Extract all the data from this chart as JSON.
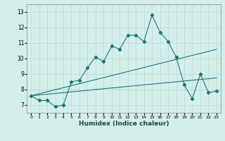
{
  "xlabel": "Humidex (Indice chaleur)",
  "x": [
    0,
    1,
    2,
    3,
    4,
    5,
    6,
    7,
    8,
    9,
    10,
    11,
    12,
    13,
    14,
    15,
    16,
    17,
    18,
    19,
    20,
    21,
    22,
    23
  ],
  "line_jagged": [
    7.6,
    7.3,
    7.3,
    6.9,
    7.0,
    8.5,
    8.6,
    9.4,
    10.1,
    9.8,
    10.8,
    10.6,
    11.5,
    11.5,
    11.1,
    12.8,
    11.7,
    11.1,
    10.1,
    8.3,
    7.4,
    9.0,
    7.8,
    7.9
  ],
  "line_straight1": [
    7.6,
    7.65,
    7.7,
    7.75,
    7.8,
    7.85,
    7.9,
    7.95,
    8.0,
    8.05,
    8.1,
    8.15,
    8.2,
    8.25,
    8.3,
    8.35,
    8.4,
    8.45,
    8.5,
    8.55,
    8.6,
    8.65,
    8.7,
    8.75
  ],
  "line_straight2": [
    7.6,
    7.73,
    7.86,
    7.99,
    8.12,
    8.25,
    8.38,
    8.51,
    8.64,
    8.77,
    8.9,
    9.03,
    9.16,
    9.29,
    9.42,
    9.55,
    9.68,
    9.81,
    9.94,
    10.07,
    10.2,
    10.33,
    10.46,
    10.59
  ],
  "ylim": [
    6.5,
    13.5
  ],
  "yticks": [
    7,
    8,
    9,
    10,
    11,
    12,
    13
  ],
  "line_color": "#1a7a6e",
  "bg_color": "#d4eeec",
  "grid_color": "#b8d8d4"
}
